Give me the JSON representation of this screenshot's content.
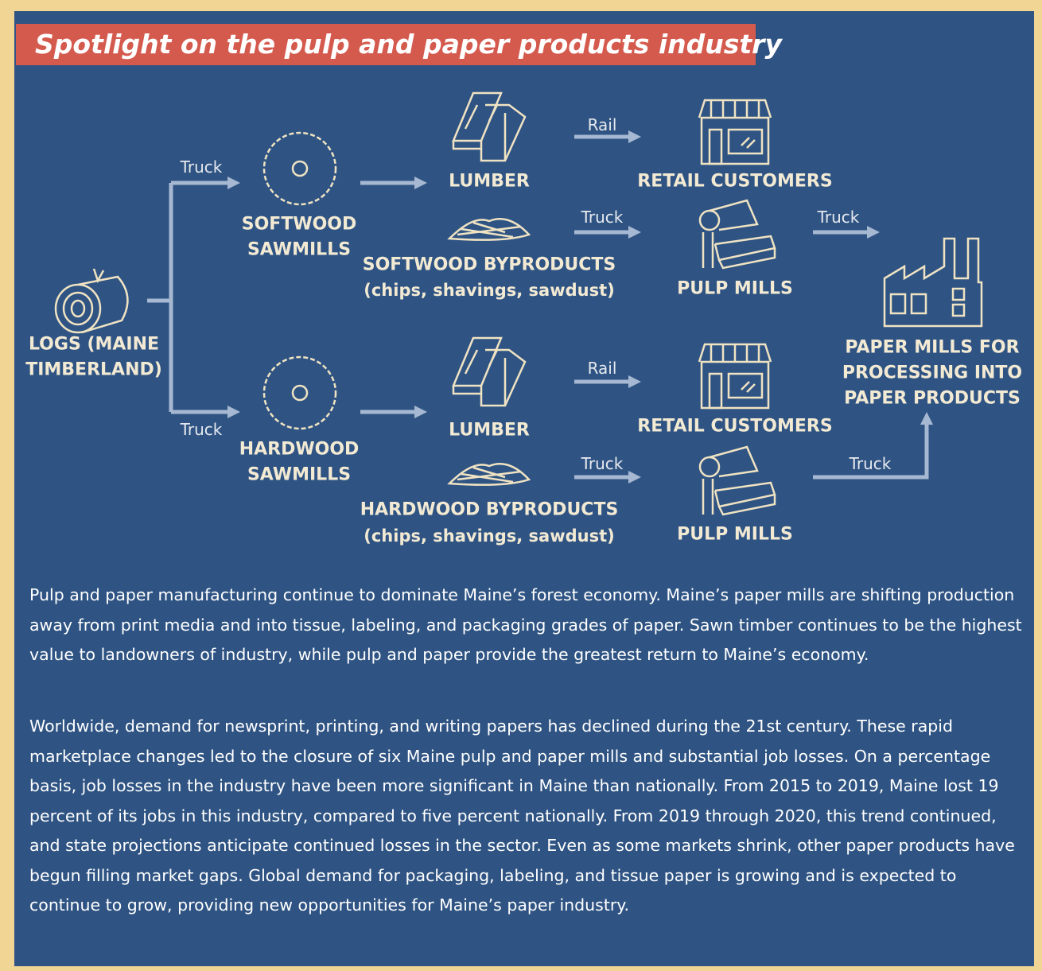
{
  "header": {
    "title": "Spotlight on the pulp and paper products industry"
  },
  "nodes": {
    "logs": {
      "label_lines": [
        "LOGS (MAINE",
        "TIMBERLAND)"
      ]
    },
    "softwood_sawmills": {
      "label_lines": [
        "SOFTWOOD",
        "SAWMILLS"
      ]
    },
    "hardwood_sawmills": {
      "label_lines": [
        "HARDWOOD",
        "SAWMILLS"
      ]
    },
    "softwood_lumber": {
      "label": "LUMBER"
    },
    "hardwood_lumber": {
      "label": "LUMBER"
    },
    "softwood_byproducts": {
      "label": "SOFTWOOD BYPRODUCTS",
      "detail": "(chips, shavings, sawdust)"
    },
    "hardwood_byproducts": {
      "label": "HARDWOOD BYPRODUCTS",
      "detail": "(chips, shavings, sawdust)"
    },
    "retail_top": {
      "label": "RETAIL CUSTOMERS"
    },
    "retail_bottom": {
      "label": "RETAIL CUSTOMERS"
    },
    "pulp_top": {
      "label": "PULP MILLS"
    },
    "pulp_bottom": {
      "label": "PULP MILLS"
    },
    "paper_mills": {
      "label_lines": [
        "PAPER MILLS FOR",
        "PROCESSING INTO",
        "PAPER PRODUCTS"
      ]
    }
  },
  "edges": [
    {
      "label": "Truck"
    },
    {
      "label": "Truck"
    },
    {
      "label": "Rail"
    },
    {
      "label": "Truck"
    },
    {
      "label": "Rail"
    },
    {
      "label": "Truck"
    },
    {
      "label": "Truck"
    },
    {
      "label": "Truck"
    }
  ],
  "paragraphs": [
    "Pulp and paper manufacturing continue to dominate Maine’s forest economy. Maine’s paper mills are shifting production away from print media and into tissue, labeling, and packaging grades of paper. Sawn timber continues to be the highest value to landowners of industry, while pulp and paper provide the greatest return to Maine’s economy.",
    "Worldwide, demand for newsprint, printing, and writing papers has declined during the 21st century. These rapid marketplace changes led to the closure of six Maine pulp and paper mills and substantial job losses. On a percentage basis, job losses in the industry have been more significant in Maine than nationally. From 2015 to 2019, Maine lost 19 percent of its jobs in this industry, compared to five percent nationally. From 2019 through 2020, this trend continued, and state projections anticipate continued losses in the sector. Even as some markets shrink, other paper products have begun filling market gaps. Global demand for packaging, labeling, and tissue paper is growing and is expected to continue to grow, providing new opportunities for Maine’s paper industry."
  ]
}
